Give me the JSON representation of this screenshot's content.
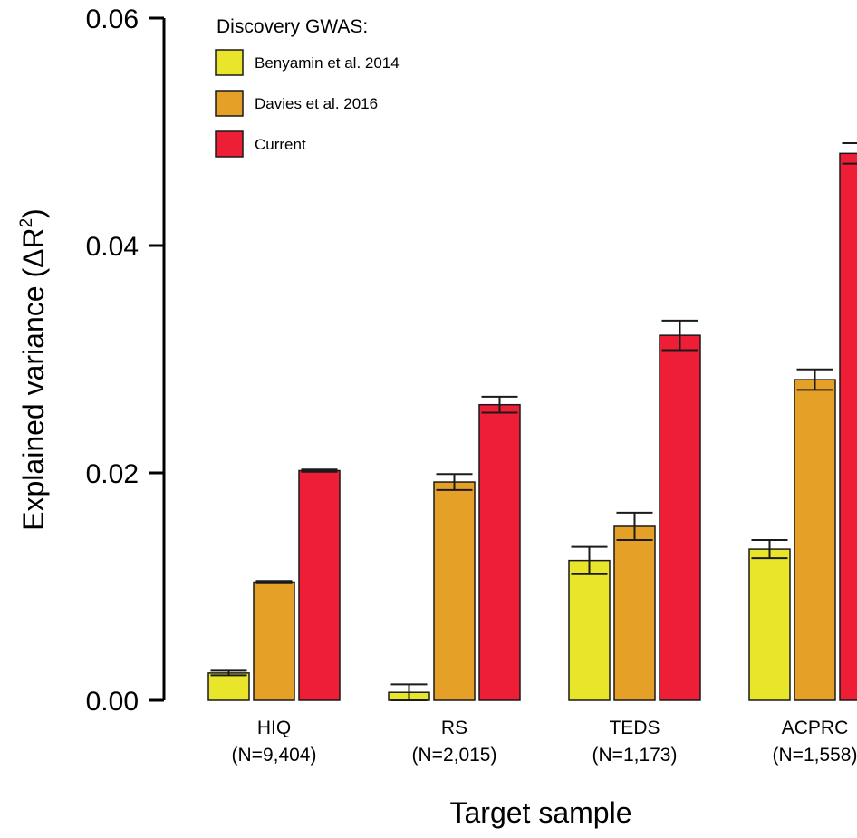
{
  "chart_data": {
    "type": "bar",
    "xlabel": "Target sample",
    "ylabel_text": "Explained variance (ΔR",
    "ylabel_sup": "2",
    "ylabel_close": ")",
    "ylim": [
      0,
      0.06
    ],
    "yticks": [
      {
        "value": 0,
        "label": "0.00"
      },
      {
        "value": 0.02,
        "label": "0.02"
      },
      {
        "value": 0.04,
        "label": "0.04"
      },
      {
        "value": 0.06,
        "label": "0.06"
      }
    ],
    "categories": [
      {
        "name": "HIQ",
        "n": "(N=9,404)"
      },
      {
        "name": "RS",
        "n": "(N=2,015)"
      },
      {
        "name": "TEDS",
        "n": "(N=1,173)"
      },
      {
        "name": "ACPRC",
        "n": "(N=1,558)"
      }
    ],
    "legend_title": "Discovery GWAS:",
    "legend_position": "top-left",
    "series": [
      {
        "name": "Benyamin et al. 2014",
        "color": "#e8e52b",
        "values": [
          0.0024,
          0.0007,
          0.0123,
          0.0133
        ],
        "errors": [
          0.0002,
          0.0007,
          0.0012,
          0.0008
        ]
      },
      {
        "name": "Davies et al. 2016",
        "color": "#e5a127",
        "values": [
          0.0104,
          0.0192,
          0.0153,
          0.0282
        ],
        "errors": [
          0.0001,
          0.0007,
          0.0012,
          0.0009
        ]
      },
      {
        "name": "Current",
        "color": "#ee1e37",
        "values": [
          0.0202,
          0.026,
          0.0321,
          0.0481
        ],
        "errors": [
          0.0001,
          0.0007,
          0.0013,
          0.0009
        ]
      }
    ]
  }
}
